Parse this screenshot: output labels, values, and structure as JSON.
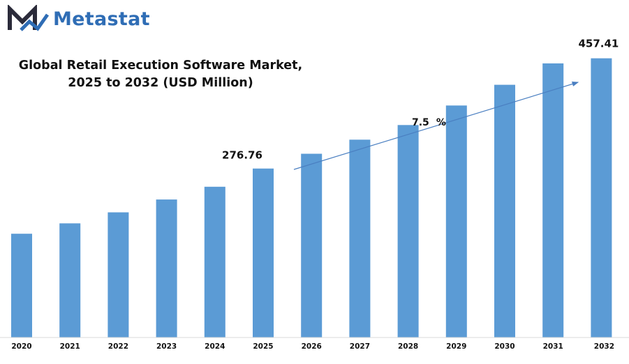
{
  "brand": {
    "name": "Metastat",
    "logo_icon": "metastat-m-logo-icon",
    "color": "#2f6db5"
  },
  "chart_data": {
    "type": "bar",
    "title": "Global Retail Execution Software Market,",
    "subtitle": "2025 to 2032 (USD Million)",
    "categories": [
      "2020",
      "2021",
      "2022",
      "2023",
      "2024",
      "2025",
      "2026",
      "2027",
      "2028",
      "2029",
      "2030",
      "2031",
      "2032"
    ],
    "values": [
      170,
      187,
      205,
      226,
      247,
      276.76,
      301,
      324,
      348,
      380,
      414,
      449,
      457.41
    ],
    "data_labels": [
      {
        "category": "2025",
        "text": "276.76"
      },
      {
        "category": "2032",
        "text": "457.41"
      }
    ],
    "annotation": {
      "text": "7.5",
      "unit": "%"
    },
    "bar_color": "#5b9bd5",
    "ylim": [
      0,
      530
    ],
    "grid": false,
    "legend": "none"
  }
}
